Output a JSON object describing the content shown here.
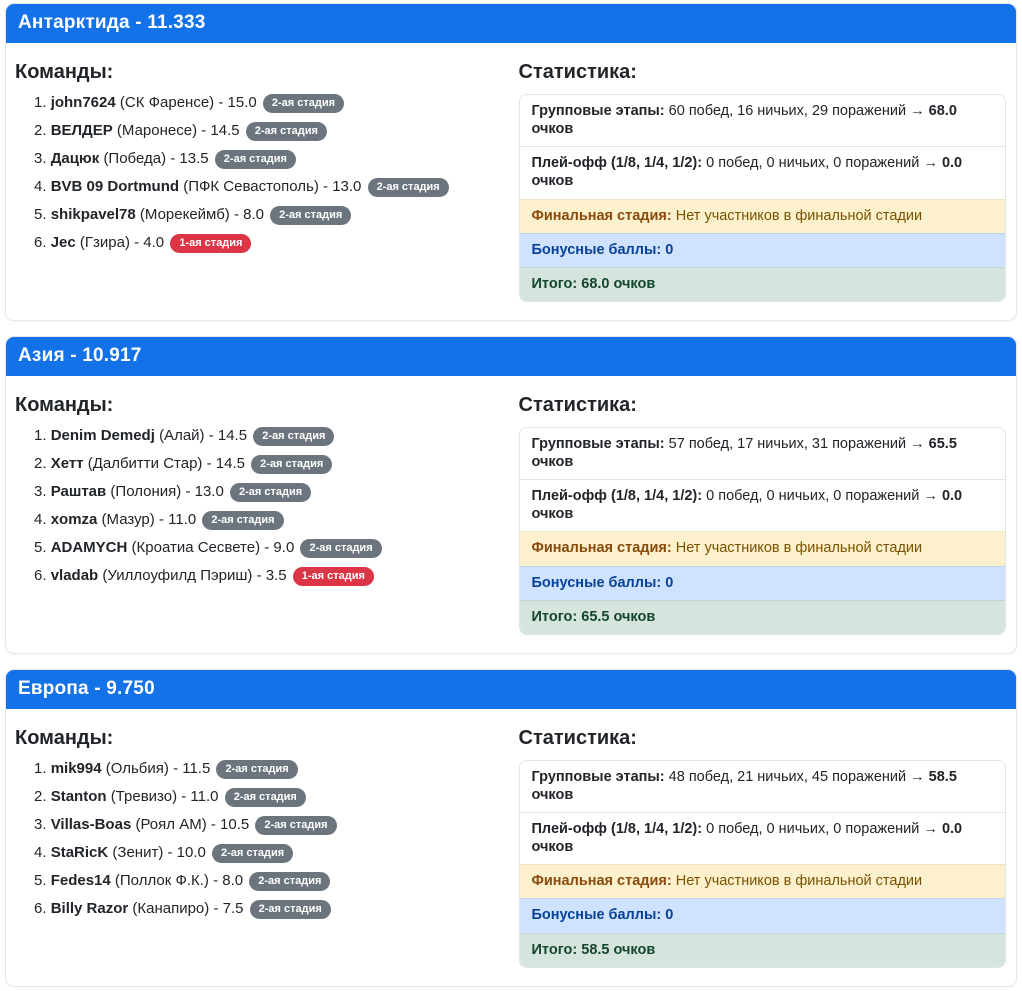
{
  "labels": {
    "teams_heading": "Команды:",
    "stats_heading": "Статистика:"
  },
  "colors": {
    "header_bg": "#1372e8",
    "badge_stage2_bg": "#6c757d",
    "badge_stage1_bg": "#dc3545",
    "final_row_bg": "#fcf0cd",
    "bonus_row_bg": "#cfe2ff",
    "total_row_bg": "#d5e5dd"
  },
  "sections": [
    {
      "title": "Антарктида - 11.333",
      "teams": [
        {
          "num": "1.",
          "name": "john7624",
          "club": "(СК Фаренсе)",
          "score": "- 15.0",
          "badge": "2-ая стадия",
          "badge_class": "badge badge-gray"
        },
        {
          "num": "2.",
          "name": "ВЕЛДЕР",
          "club": "(Маронесе)",
          "score": "- 14.5",
          "badge": "2-ая стадия",
          "badge_class": "badge badge-gray"
        },
        {
          "num": "3.",
          "name": "Дацюк",
          "club": "(Победа)",
          "score": "- 13.5",
          "badge": "2-ая стадия",
          "badge_class": "badge badge-gray"
        },
        {
          "num": "4.",
          "name": "BVB 09 Dortmund",
          "club": "(ПФК Севастополь)",
          "score": "- 13.0",
          "badge": "2-ая стадия",
          "badge_class": "badge badge-gray"
        },
        {
          "num": "5.",
          "name": "shikpavel78",
          "club": "(Морекеймб)",
          "score": "- 8.0",
          "badge": "2-ая стадия",
          "badge_class": "badge badge-gray"
        },
        {
          "num": "6.",
          "name": "Jec",
          "club": "(Гзира)",
          "score": "- 4.0",
          "badge": "1-ая стадия",
          "badge_class": "badge badge-red"
        }
      ],
      "stats": {
        "group_label": "Групповые этапы:",
        "group_text": "60 побед, 16 ничьих, 29 поражений →",
        "group_points": "68.0 очков",
        "playoff_label": "Плей-офф (1/8, 1/4, 1/2):",
        "playoff_text": "0 побед, 0 ничьих, 0 поражений →",
        "playoff_points": "0.0 очков",
        "final_label": "Финальная стадия:",
        "final_text": "Нет участников в финальной стадии",
        "bonus": "Бонусные баллы: 0",
        "total": "Итого: 68.0 очков"
      }
    },
    {
      "title": "Азия - 10.917",
      "teams": [
        {
          "num": "1.",
          "name": "Denim Demedj",
          "club": "(Алай)",
          "score": "- 14.5",
          "badge": "2-ая стадия",
          "badge_class": "badge badge-gray"
        },
        {
          "num": "2.",
          "name": "Хетт",
          "club": "(Далбитти Стар)",
          "score": "- 14.5",
          "badge": "2-ая стадия",
          "badge_class": "badge badge-gray"
        },
        {
          "num": "3.",
          "name": "Раштав",
          "club": "(Полония)",
          "score": "- 13.0",
          "badge": "2-ая стадия",
          "badge_class": "badge badge-gray"
        },
        {
          "num": "4.",
          "name": "xomza",
          "club": "(Мазур)",
          "score": "- 11.0",
          "badge": "2-ая стадия",
          "badge_class": "badge badge-gray"
        },
        {
          "num": "5.",
          "name": "ADAMYCH",
          "club": "(Кроатиа Сесвете)",
          "score": "- 9.0",
          "badge": "2-ая стадия",
          "badge_class": "badge badge-gray"
        },
        {
          "num": "6.",
          "name": "vladab",
          "club": "(Уиллоуфилд Пэриш)",
          "score": "- 3.5",
          "badge": "1-ая стадия",
          "badge_class": "badge badge-red"
        }
      ],
      "stats": {
        "group_label": "Групповые этапы:",
        "group_text": "57 побед, 17 ничьих, 31 поражений →",
        "group_points": "65.5 очков",
        "playoff_label": "Плей-офф (1/8, 1/4, 1/2):",
        "playoff_text": "0 побед, 0 ничьих, 0 поражений →",
        "playoff_points": "0.0 очков",
        "final_label": "Финальная стадия:",
        "final_text": "Нет участников в финальной стадии",
        "bonus": "Бонусные баллы: 0",
        "total": "Итого: 65.5 очков"
      }
    },
    {
      "title": "Европа - 9.750",
      "teams": [
        {
          "num": "1.",
          "name": "mik994",
          "club": "(Ольбия)",
          "score": "- 11.5",
          "badge": "2-ая стадия",
          "badge_class": "badge badge-gray"
        },
        {
          "num": "2.",
          "name": "Stanton",
          "club": "(Тревизо)",
          "score": "- 11.0",
          "badge": "2-ая стадия",
          "badge_class": "badge badge-gray"
        },
        {
          "num": "3.",
          "name": "Villas-Boas",
          "club": "(Роял АМ)",
          "score": "- 10.5",
          "badge": "2-ая стадия",
          "badge_class": "badge badge-gray"
        },
        {
          "num": "4.",
          "name": "StaRicK",
          "club": "(Зенит)",
          "score": "- 10.0",
          "badge": "2-ая стадия",
          "badge_class": "badge badge-gray"
        },
        {
          "num": "5.",
          "name": "Fedes14",
          "club": "(Поллок Ф.К.)",
          "score": "- 8.0",
          "badge": "2-ая стадия",
          "badge_class": "badge badge-gray"
        },
        {
          "num": "6.",
          "name": "Billy Razor",
          "club": "(Канапиро)",
          "score": "- 7.5",
          "badge": "2-ая стадия",
          "badge_class": "badge badge-gray"
        }
      ],
      "stats": {
        "group_label": "Групповые этапы:",
        "group_text": "48 побед, 21 ничьих, 45 поражений →",
        "group_points": "58.5 очков",
        "playoff_label": "Плей-офф (1/8, 1/4, 1/2):",
        "playoff_text": "0 побед, 0 ничьих, 0 поражений →",
        "playoff_points": "0.0 очков",
        "final_label": "Финальная стадия:",
        "final_text": "Нет участников в финальной стадии",
        "bonus": "Бонусные баллы: 0",
        "total": "Итого: 58.5 очков"
      }
    }
  ]
}
